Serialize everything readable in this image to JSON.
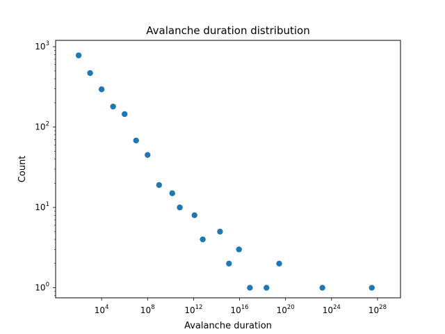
{
  "chart_data": {
    "type": "scatter",
    "title": "Avalanche duration distribution",
    "xlabel": "Avalanche duration",
    "ylabel": "Count",
    "xscale": "log",
    "yscale": "log",
    "xlim": [
      1,
      1e+30
    ],
    "ylim": [
      0.75,
      1200
    ],
    "xticks": [
      {
        "base": "10",
        "exp": "4",
        "value": 10000.0
      },
      {
        "base": "10",
        "exp": "8",
        "value": 100000000.0
      },
      {
        "base": "10",
        "exp": "12",
        "value": 1000000000000.0
      },
      {
        "base": "10",
        "exp": "16",
        "value": 1e+16
      },
      {
        "base": "10",
        "exp": "20",
        "value": 1e+20
      },
      {
        "base": "10",
        "exp": "24",
        "value": 1e+24
      },
      {
        "base": "10",
        "exp": "28",
        "value": 1e+28
      }
    ],
    "yticks": [
      {
        "base": "10",
        "exp": "0",
        "value": 1
      },
      {
        "base": "10",
        "exp": "1",
        "value": 10
      },
      {
        "base": "10",
        "exp": "2",
        "value": 100
      },
      {
        "base": "10",
        "exp": "3",
        "value": 1000
      }
    ],
    "grid": false,
    "legend": "none",
    "marker_color": "#1f77b4",
    "series": [
      {
        "points": [
          {
            "x": 100.0,
            "y": 780
          },
          {
            "x": 1000.0,
            "y": 470
          },
          {
            "x": 10000.0,
            "y": 295
          },
          {
            "x": 100000.0,
            "y": 180
          },
          {
            "x": 1000000.0,
            "y": 145
          },
          {
            "x": 10000000.0,
            "y": 68
          },
          {
            "x": 100000000.0,
            "y": 45
          },
          {
            "x": 1000000000.0,
            "y": 19
          },
          {
            "x": 14000000000.0,
            "y": 15
          },
          {
            "x": 63000000000.0,
            "y": 10
          },
          {
            "x": 1200000000000.0,
            "y": 8
          },
          {
            "x": 6300000000000.0,
            "y": 4
          },
          {
            "x": 200000000000000.0,
            "y": 5
          },
          {
            "x": 1200000000000000.0,
            "y": 2
          },
          {
            "x": 8900000000000000.0,
            "y": 3
          },
          {
            "x": 7.9e+16,
            "y": 1
          },
          {
            "x": 2.2e+18,
            "y": 1
          },
          {
            "x": 2.8e+19,
            "y": 2
          },
          {
            "x": 1.6e+23,
            "y": 1
          },
          {
            "x": 3.2e+27,
            "y": 1
          }
        ]
      }
    ]
  }
}
